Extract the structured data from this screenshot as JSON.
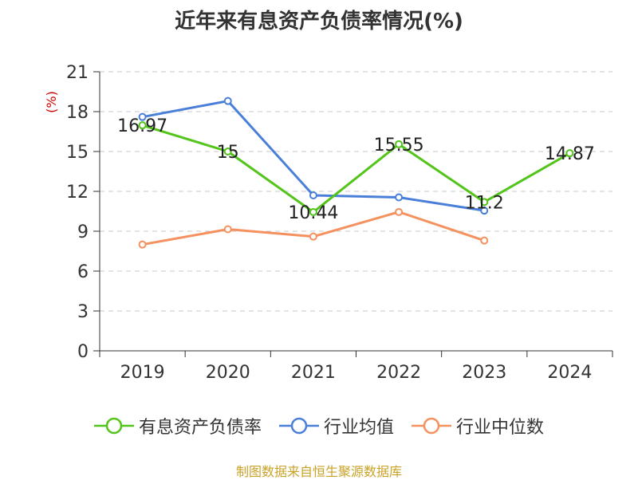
{
  "title": "近年来有息资产负债率情况(%)",
  "source_note": "制图数据来自恒生聚源数据库",
  "chart_data": {
    "type": "line",
    "title": "近年来有息资产负债率情况(%)",
    "ylabel": "(%)",
    "xlabel": "",
    "categories": [
      "2019",
      "2020",
      "2021",
      "2022",
      "2023",
      "2024"
    ],
    "yticks": [
      "0",
      "3",
      "6",
      "9",
      "12",
      "15",
      "18",
      "21"
    ],
    "ylim": [
      0,
      21
    ],
    "grid": true,
    "legend_position": "bottom",
    "series": [
      {
        "name": "有息资产负债率",
        "color": "#52c41a",
        "values": [
          16.97,
          15,
          10.44,
          15.55,
          11.2,
          14.87
        ],
        "labels": [
          "16.97",
          "15",
          "10.44",
          "15.55",
          "11.2",
          "14.87"
        ]
      },
      {
        "name": "行业均值",
        "color": "#4a7fd9",
        "values": [
          17.6,
          18.8,
          11.7,
          11.55,
          10.55,
          null
        ]
      },
      {
        "name": "行业中位数",
        "color": "#f5915e",
        "values": [
          8.0,
          9.15,
          8.6,
          10.45,
          8.3,
          null
        ]
      }
    ]
  }
}
